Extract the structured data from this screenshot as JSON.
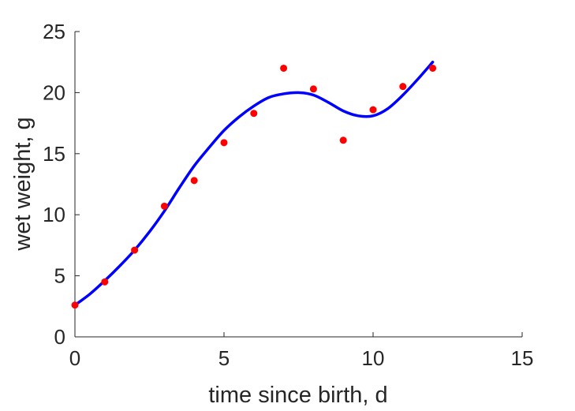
{
  "chart_data": {
    "type": "scatter",
    "title": "",
    "xlabel": "time since birth, d",
    "ylabel": "wet weight, g",
    "xlim": [
      0,
      15
    ],
    "ylim": [
      0,
      25
    ],
    "xticks": [
      0,
      5,
      10,
      15
    ],
    "yticks": [
      0,
      5,
      10,
      15,
      20,
      25
    ],
    "grid": false,
    "legend": "none",
    "series": [
      {
        "kind": "scatter",
        "color": "#ff0000",
        "x": [
          0,
          1,
          2,
          3,
          4,
          5,
          6,
          7,
          8,
          9,
          10,
          11,
          12
        ],
        "y": [
          2.6,
          4.5,
          7.1,
          10.7,
          12.8,
          15.9,
          18.3,
          22.0,
          20.3,
          16.1,
          18.6,
          20.5,
          22.0
        ]
      },
      {
        "kind": "line",
        "color": "#0000ff",
        "x": [
          0,
          0.5,
          1,
          1.5,
          2,
          2.5,
          3,
          3.5,
          4,
          4.5,
          5,
          5.5,
          6,
          6.5,
          7,
          7.5,
          8,
          8.5,
          9,
          9.5,
          10,
          10.5,
          11,
          11.5,
          12
        ],
        "y": [
          2.6,
          3.5,
          4.6,
          5.8,
          7.1,
          8.6,
          10.3,
          12.2,
          14.0,
          15.5,
          16.9,
          18.0,
          18.9,
          19.6,
          19.9,
          20.0,
          19.8,
          19.2,
          18.5,
          18.1,
          18.1,
          18.7,
          19.8,
          21.1,
          22.5
        ]
      }
    ]
  }
}
